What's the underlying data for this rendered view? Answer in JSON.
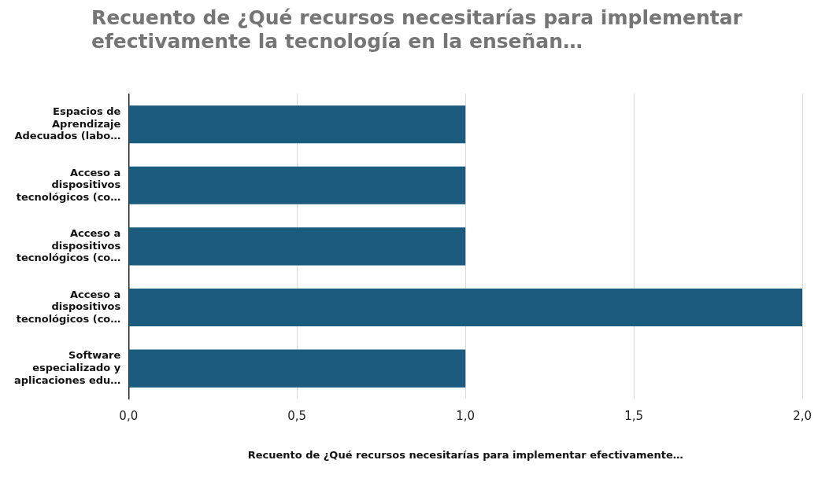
{
  "chart_data": {
    "type": "bar",
    "orientation": "horizontal",
    "title": "Recuento de ¿Qué recursos necesitarías para implementar efectivamente la tecnología en la enseñan…",
    "xlabel": "Recuento de ¿Qué recursos necesitarías para implementar efectivamente…",
    "categories": [
      "Espacios de Aprendizaje Adecuados (labo…",
      "Acceso a dispositivos tecnológicos (co…",
      "Acceso a dispositivos tecnológicos (co…",
      "Acceso a dispositivos tecnológicos (co…",
      "Software especializado y aplicaciones edu…"
    ],
    "values": [
      1,
      1,
      1,
      2,
      1
    ],
    "color": "#1b5c7e",
    "xlim": [
      0,
      2
    ],
    "xticks": [
      {
        "value": 0,
        "label": "0,0"
      },
      {
        "value": 0.5,
        "label": "0,5"
      },
      {
        "value": 1,
        "label": "1,0"
      },
      {
        "value": 1.5,
        "label": "1,5"
      },
      {
        "value": 2,
        "label": "2,0"
      }
    ],
    "grid": "x",
    "legend": false
  }
}
